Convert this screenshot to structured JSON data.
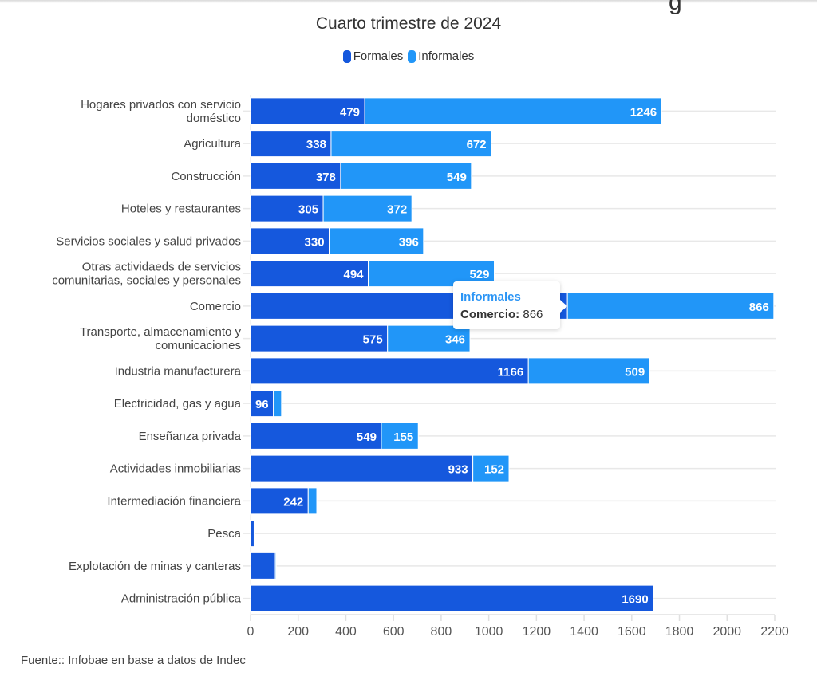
{
  "colors": {
    "formales": "#1558dd",
    "informales": "#2196f8",
    "grid": "#e8e8e8",
    "label": "#444444"
  },
  "header": {
    "title_fragment": "g"
  },
  "tooltip": {
    "series": "Informales",
    "category": "Comercio:",
    "value": "866"
  },
  "footer": {
    "source": "Fuente:: Infobae en base a datos de Indec"
  },
  "chart_data": {
    "type": "bar",
    "orientation": "horizontal",
    "stacked": true,
    "title": "",
    "subtitle": "Cuarto trimestre de 2024",
    "xlabel": "",
    "ylabel": "",
    "xlim": [
      0,
      2200
    ],
    "x_ticks": [
      0,
      200,
      400,
      600,
      800,
      1000,
      1200,
      1400,
      1600,
      1800,
      2000,
      2200
    ],
    "grid": true,
    "legend": {
      "placement": "top-center",
      "entries": [
        "Formales",
        "Informales"
      ]
    },
    "categories": [
      [
        "Hogares privados con servicio",
        "doméstico"
      ],
      [
        "Agricultura"
      ],
      [
        "Construcción"
      ],
      [
        "Hoteles y restaurantes"
      ],
      [
        "Servicios sociales y salud privados"
      ],
      [
        "Otras actividaeds de servicios",
        "comunitarias, sociales y personales"
      ],
      [
        "Comercio"
      ],
      [
        "Transporte, almacenamiento y",
        "comunicaciones"
      ],
      [
        "Industria manufacturera"
      ],
      [
        "Electricidad, gas y agua"
      ],
      [
        "Enseñanza privada"
      ],
      [
        "Actividades inmobiliarias"
      ],
      [
        "Intermediación financiera"
      ],
      [
        "Pesca"
      ],
      [
        "Explotación de minas y canteras"
      ],
      [
        "Administración pública"
      ]
    ],
    "series": [
      {
        "name": "Formales",
        "values": [
          479,
          338,
          378,
          305,
          330,
          494,
          1330,
          575,
          1166,
          96,
          549,
          933,
          242,
          15,
          104,
          1690
        ],
        "labels": [
          "479",
          "338",
          "378",
          "305",
          "330",
          "494",
          "",
          "575",
          "1166",
          "96",
          "549",
          "933",
          "242",
          "",
          "",
          "1690"
        ]
      },
      {
        "name": "Informales",
        "values": [
          1246,
          672,
          549,
          372,
          396,
          529,
          866,
          346,
          509,
          34,
          155,
          152,
          36,
          2,
          4,
          0
        ],
        "labels": [
          "1246",
          "672",
          "549",
          "372",
          "396",
          "529",
          "866",
          "346",
          "509",
          "",
          "155",
          "152",
          "",
          "",
          "",
          ""
        ]
      }
    ]
  }
}
